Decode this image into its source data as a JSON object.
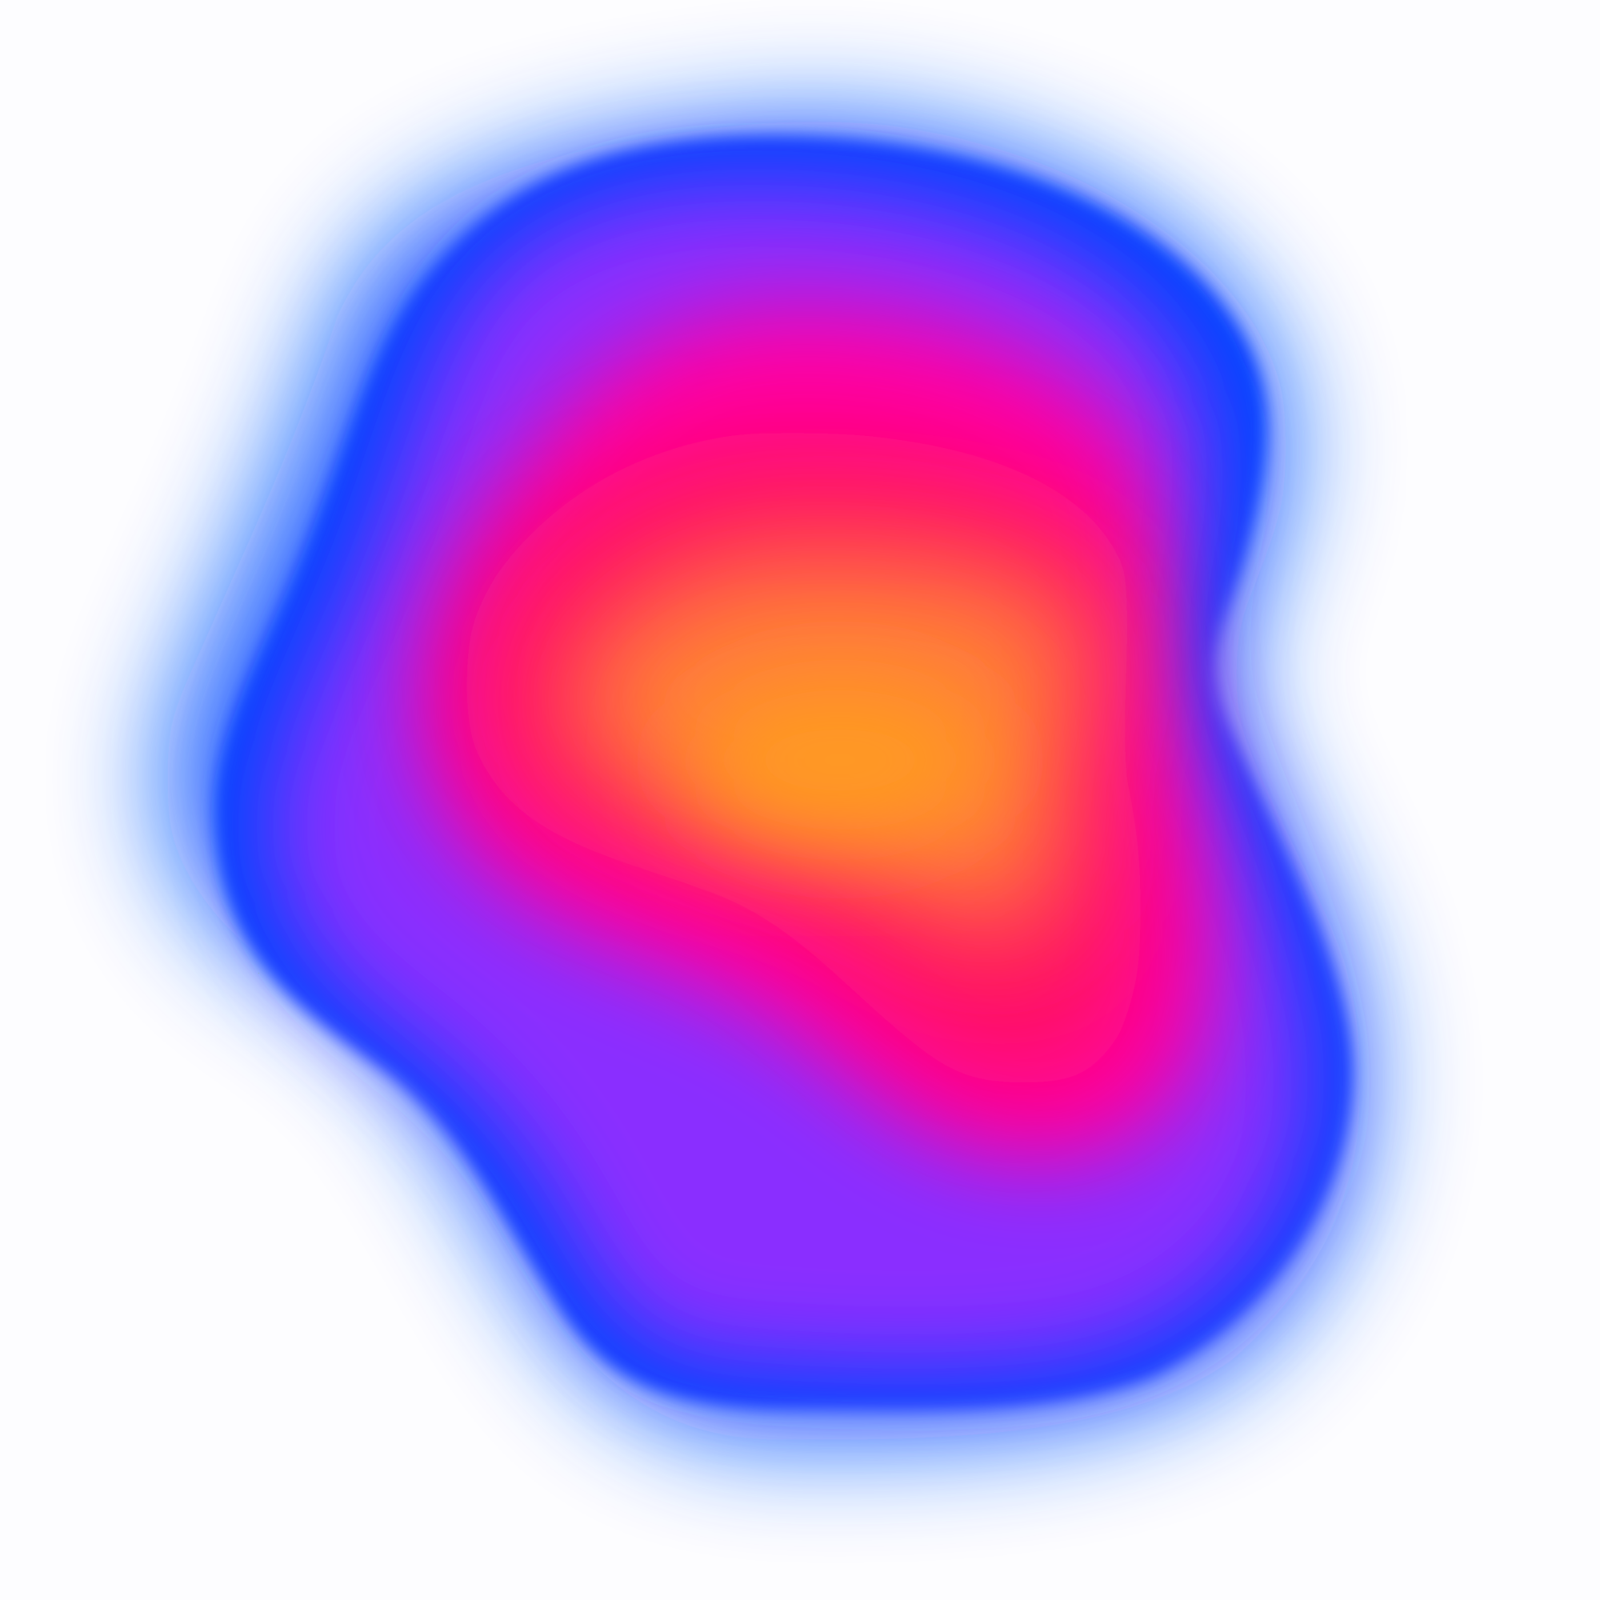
{
  "artwork": {
    "description_text": "",
    "background_color": "#fdfdff",
    "colors": {
      "halo": "#0a5cff",
      "outer_ring": "#0044ff",
      "violet": "#8a2dff",
      "magenta": "#ff00a8",
      "pink_red": "#ff0a64",
      "orange_mid": "#ff7a3a",
      "orange_core": "#ff9a22"
    }
  }
}
